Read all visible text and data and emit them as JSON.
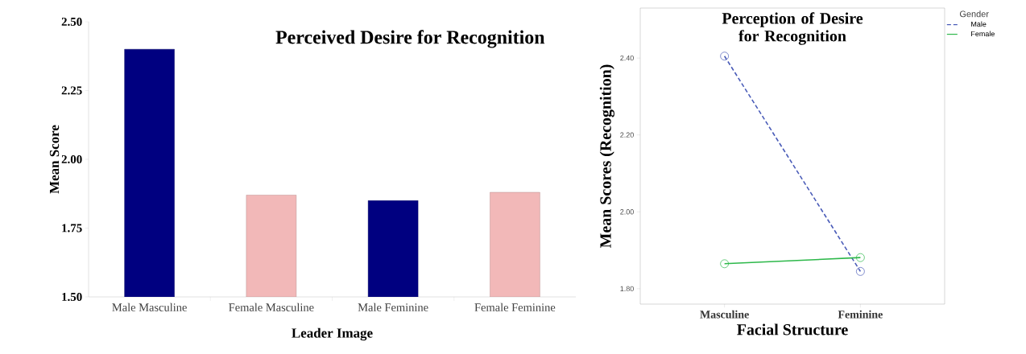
{
  "chart_data": [
    {
      "type": "bar",
      "title": "Perceived Desire for Recognition",
      "xlabel": "Leader Image",
      "ylabel": "Mean Score",
      "categories": [
        "Male Masculine",
        "Female Masculine",
        "Male Feminine",
        "Female Feminine"
      ],
      "values": [
        2.4,
        1.87,
        1.85,
        1.88
      ],
      "colors": [
        "#000080",
        "#f2b8b8",
        "#000080",
        "#f2b8b8"
      ],
      "ylim": [
        1.5,
        2.5
      ],
      "yticks": [
        {
          "value": 1.5,
          "label": "1.50"
        },
        {
          "value": 1.75,
          "label": "1.75"
        },
        {
          "value": 2.0,
          "label": "2.00"
        },
        {
          "value": 2.25,
          "label": "2.25"
        },
        {
          "value": 2.5,
          "label": "2.50"
        }
      ]
    },
    {
      "type": "line",
      "title": "Perception of Desire for Recognition",
      "xlabel": "Facial Structure",
      "ylabel": "Mean Scores (Recognition)",
      "legend_title": "Gender",
      "categories": [
        "Masculine",
        "Feminine"
      ],
      "series": [
        {
          "name": "Male",
          "color": "#4a5cb8",
          "values": [
            2.405,
            1.845
          ],
          "line_style": "dashed"
        },
        {
          "name": "Female",
          "color": "#2db84a",
          "values": [
            1.865,
            1.881
          ],
          "line_style": "solid"
        }
      ],
      "marker": "circle",
      "legend": "top right",
      "ylim": [
        1.76,
        2.53
      ],
      "yticks": [
        {
          "value": 1.8,
          "label": "1.80"
        },
        {
          "value": 2.0,
          "label": "2.00"
        },
        {
          "value": 2.2,
          "label": "2.20"
        },
        {
          "value": 2.4,
          "label": "2.40"
        }
      ]
    }
  ]
}
